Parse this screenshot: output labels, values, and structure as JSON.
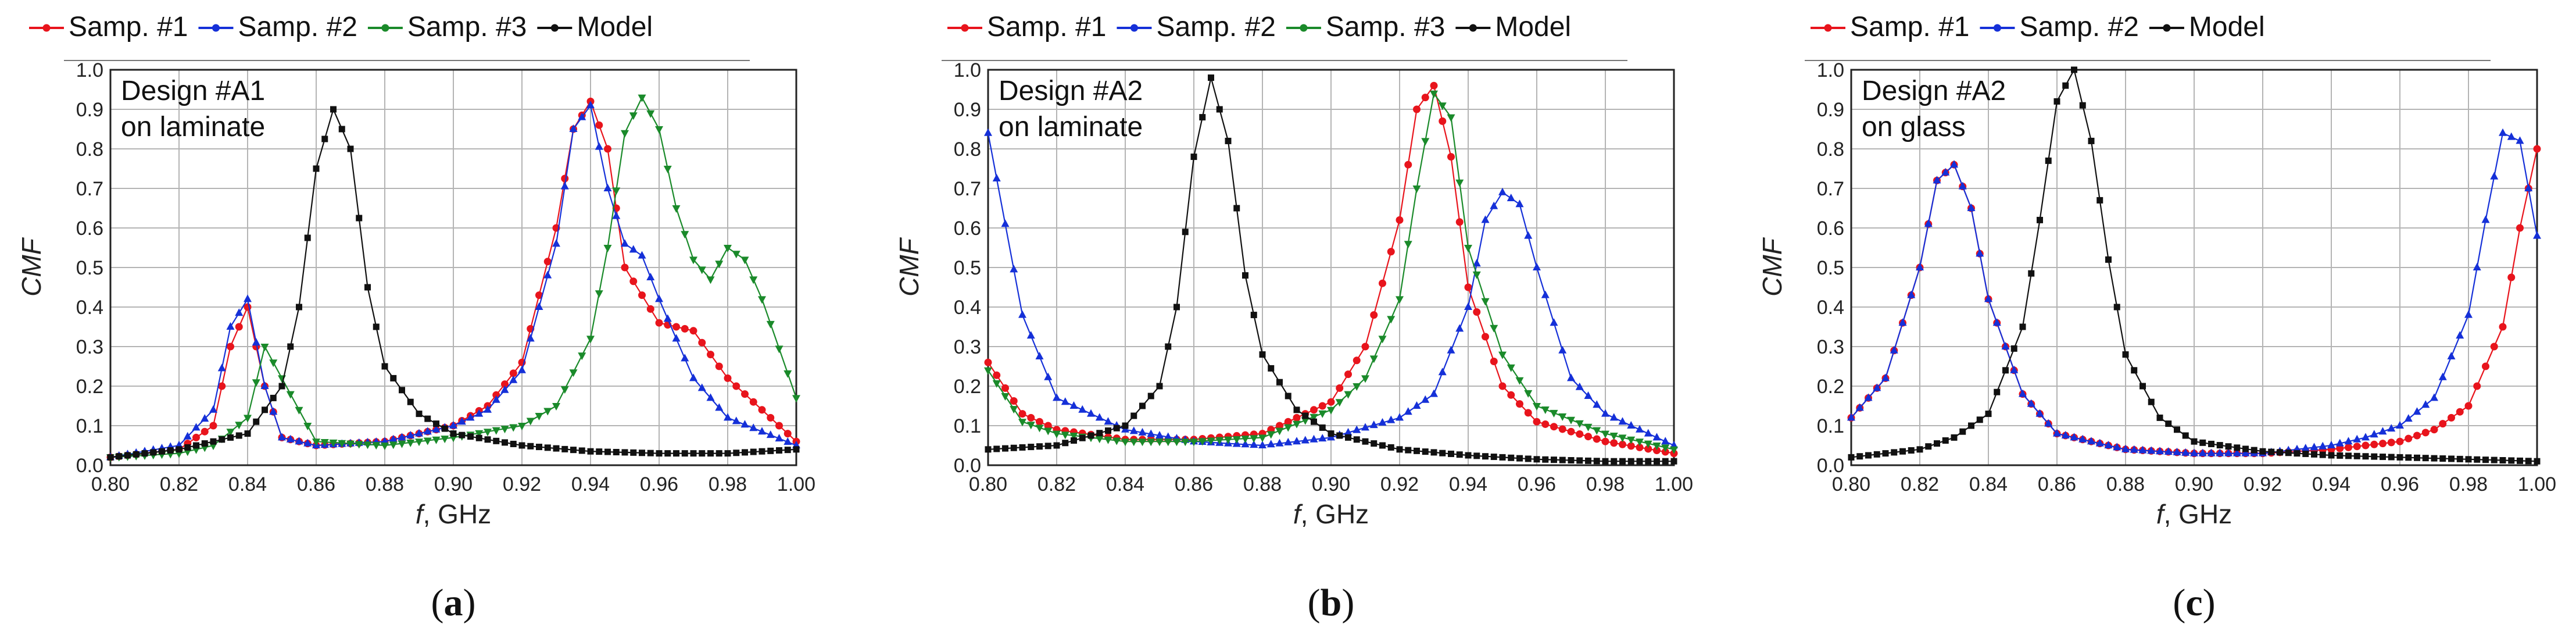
{
  "chart_data": [
    {
      "type": "line",
      "panel_label": "a",
      "annotation": [
        "Design #A1",
        "on laminate"
      ],
      "xlabel_italic": "f",
      "xlabel_rest": ", GHz",
      "ylabel": "CMF",
      "xlim": [
        0.8,
        1.0
      ],
      "ylim": [
        0.0,
        1.0
      ],
      "xticks": [
        "0.80",
        "0.82",
        "0.84",
        "0.86",
        "0.88",
        "0.90",
        "0.92",
        "0.94",
        "0.96",
        "0.98",
        "1.00"
      ],
      "yticks": [
        "0.0",
        "0.1",
        "0.2",
        "0.3",
        "0.4",
        "0.5",
        "0.6",
        "0.7",
        "0.8",
        "0.9",
        "1.0"
      ],
      "grid": true,
      "legend_position": "top",
      "series": [
        {
          "name": "Samp. #1",
          "color": "#e8141c",
          "marker": "circle",
          "x": [
            0.8,
            0.82,
            0.83,
            0.835,
            0.84,
            0.845,
            0.85,
            0.86,
            0.88,
            0.9,
            0.91,
            0.92,
            0.93,
            0.935,
            0.94,
            0.945,
            0.95,
            0.96,
            0.97,
            0.98,
            1.0
          ],
          "y": [
            0.02,
            0.04,
            0.1,
            0.3,
            0.4,
            0.2,
            0.07,
            0.05,
            0.06,
            0.1,
            0.15,
            0.26,
            0.6,
            0.85,
            0.92,
            0.8,
            0.5,
            0.36,
            0.34,
            0.22,
            0.06
          ]
        },
        {
          "name": "Samp. #2",
          "color": "#1530d8",
          "marker": "triangle",
          "x": [
            0.8,
            0.82,
            0.83,
            0.835,
            0.84,
            0.845,
            0.85,
            0.86,
            0.88,
            0.9,
            0.91,
            0.92,
            0.93,
            0.935,
            0.94,
            0.945,
            0.95,
            0.955,
            0.96,
            0.97,
            0.98,
            1.0
          ],
          "y": [
            0.02,
            0.05,
            0.14,
            0.35,
            0.42,
            0.2,
            0.07,
            0.05,
            0.06,
            0.1,
            0.14,
            0.24,
            0.56,
            0.85,
            0.91,
            0.7,
            0.56,
            0.53,
            0.42,
            0.22,
            0.12,
            0.05
          ]
        },
        {
          "name": "Samp. #3",
          "color": "#1a8a2a",
          "marker": "triangle-down",
          "x": [
            0.8,
            0.82,
            0.83,
            0.84,
            0.845,
            0.85,
            0.86,
            0.88,
            0.9,
            0.92,
            0.93,
            0.94,
            0.945,
            0.95,
            0.955,
            0.96,
            0.965,
            0.97,
            0.975,
            0.98,
            0.985,
            0.99,
            1.0
          ],
          "y": [
            0.02,
            0.03,
            0.05,
            0.12,
            0.3,
            0.22,
            0.06,
            0.05,
            0.07,
            0.1,
            0.15,
            0.32,
            0.55,
            0.84,
            0.93,
            0.85,
            0.65,
            0.52,
            0.47,
            0.55,
            0.52,
            0.42,
            0.17
          ]
        },
        {
          "name": "Model",
          "color": "#111111",
          "marker": "square",
          "x": [
            0.8,
            0.82,
            0.84,
            0.85,
            0.855,
            0.86,
            0.865,
            0.87,
            0.875,
            0.88,
            0.89,
            0.9,
            0.92,
            0.94,
            0.96,
            0.98,
            1.0
          ],
          "y": [
            0.02,
            0.04,
            0.08,
            0.2,
            0.4,
            0.75,
            0.9,
            0.8,
            0.45,
            0.25,
            0.13,
            0.08,
            0.05,
            0.035,
            0.03,
            0.03,
            0.04
          ]
        }
      ]
    },
    {
      "type": "line",
      "panel_label": "b",
      "annotation": [
        "Design #A2",
        "on laminate"
      ],
      "xlabel_italic": "f",
      "xlabel_rest": ", GHz",
      "ylabel": "CMF",
      "xlim": [
        0.8,
        1.0
      ],
      "ylim": [
        0.0,
        1.0
      ],
      "xticks": [
        "0.80",
        "0.82",
        "0.84",
        "0.86",
        "0.88",
        "0.90",
        "0.92",
        "0.94",
        "0.96",
        "0.98",
        "1.00"
      ],
      "yticks": [
        "0.0",
        "0.1",
        "0.2",
        "0.3",
        "0.4",
        "0.5",
        "0.6",
        "0.7",
        "0.8",
        "0.9",
        "1.0"
      ],
      "grid": true,
      "legend_position": "top",
      "series": [
        {
          "name": "Samp. #1",
          "color": "#e8141c",
          "marker": "circle",
          "x": [
            0.8,
            0.81,
            0.82,
            0.84,
            0.86,
            0.88,
            0.9,
            0.91,
            0.92,
            0.925,
            0.93,
            0.935,
            0.94,
            0.95,
            0.96,
            0.98,
            1.0
          ],
          "y": [
            0.26,
            0.13,
            0.09,
            0.065,
            0.065,
            0.08,
            0.16,
            0.3,
            0.62,
            0.9,
            0.96,
            0.78,
            0.45,
            0.2,
            0.11,
            0.06,
            0.03
          ]
        },
        {
          "name": "Samp. #2",
          "color": "#1530d8",
          "marker": "triangle",
          "x": [
            0.8,
            0.81,
            0.82,
            0.84,
            0.86,
            0.88,
            0.9,
            0.92,
            0.93,
            0.94,
            0.945,
            0.95,
            0.955,
            0.96,
            0.97,
            0.98,
            1.0
          ],
          "y": [
            0.84,
            0.38,
            0.17,
            0.09,
            0.06,
            0.05,
            0.07,
            0.12,
            0.18,
            0.4,
            0.62,
            0.69,
            0.66,
            0.5,
            0.22,
            0.13,
            0.05
          ]
        },
        {
          "name": "Samp. #3",
          "color": "#1a8a2a",
          "marker": "triangle-down",
          "x": [
            0.8,
            0.81,
            0.82,
            0.84,
            0.86,
            0.88,
            0.9,
            0.91,
            0.92,
            0.925,
            0.93,
            0.935,
            0.94,
            0.95,
            0.96,
            0.98,
            1.0
          ],
          "y": [
            0.24,
            0.11,
            0.08,
            0.06,
            0.06,
            0.07,
            0.14,
            0.22,
            0.42,
            0.7,
            0.94,
            0.88,
            0.55,
            0.28,
            0.15,
            0.08,
            0.04
          ]
        },
        {
          "name": "Model",
          "color": "#111111",
          "marker": "square",
          "x": [
            0.8,
            0.82,
            0.84,
            0.85,
            0.855,
            0.86,
            0.865,
            0.87,
            0.875,
            0.88,
            0.89,
            0.9,
            0.92,
            0.94,
            0.96,
            0.98,
            1.0
          ],
          "y": [
            0.04,
            0.05,
            0.1,
            0.2,
            0.4,
            0.78,
            0.98,
            0.82,
            0.48,
            0.28,
            0.14,
            0.08,
            0.04,
            0.025,
            0.015,
            0.01,
            0.01
          ]
        }
      ]
    },
    {
      "type": "line",
      "panel_label": "c",
      "annotation": [
        "Design #A2",
        "on glass"
      ],
      "xlabel_italic": "f",
      "xlabel_rest": ", GHz",
      "ylabel": "CMF",
      "xlim": [
        0.8,
        1.0
      ],
      "ylim": [
        0.0,
        1.0
      ],
      "xticks": [
        "0.80",
        "0.82",
        "0.84",
        "0.86",
        "0.88",
        "0.90",
        "0.92",
        "0.94",
        "0.96",
        "0.98",
        "1.00"
      ],
      "yticks": [
        "0.0",
        "0.1",
        "0.2",
        "0.3",
        "0.4",
        "0.5",
        "0.6",
        "0.7",
        "0.8",
        "0.9",
        "1.0"
      ],
      "grid": true,
      "legend_position": "top",
      "series": [
        {
          "name": "Samp. #1",
          "color": "#e8141c",
          "marker": "circle",
          "x": [
            0.8,
            0.81,
            0.82,
            0.825,
            0.83,
            0.835,
            0.84,
            0.85,
            0.86,
            0.88,
            0.9,
            0.92,
            0.94,
            0.96,
            0.97,
            0.98,
            0.99,
            0.995,
            1.0
          ],
          "y": [
            0.12,
            0.22,
            0.5,
            0.72,
            0.76,
            0.65,
            0.42,
            0.18,
            0.08,
            0.04,
            0.03,
            0.03,
            0.04,
            0.06,
            0.09,
            0.15,
            0.35,
            0.6,
            0.8
          ]
        },
        {
          "name": "Samp. #2",
          "color": "#1530d8",
          "marker": "triangle",
          "x": [
            0.8,
            0.81,
            0.82,
            0.825,
            0.83,
            0.835,
            0.84,
            0.85,
            0.86,
            0.88,
            0.9,
            0.92,
            0.94,
            0.95,
            0.96,
            0.97,
            0.98,
            0.985,
            0.99,
            0.995,
            1.0
          ],
          "y": [
            0.12,
            0.22,
            0.5,
            0.72,
            0.76,
            0.65,
            0.42,
            0.18,
            0.08,
            0.04,
            0.03,
            0.03,
            0.05,
            0.07,
            0.1,
            0.17,
            0.38,
            0.62,
            0.84,
            0.82,
            0.58
          ]
        },
        {
          "name": "Model",
          "color": "#111111",
          "marker": "square",
          "x": [
            0.8,
            0.82,
            0.83,
            0.84,
            0.85,
            0.855,
            0.86,
            0.865,
            0.87,
            0.875,
            0.88,
            0.89,
            0.9,
            0.92,
            0.94,
            0.96,
            0.98,
            1.0
          ],
          "y": [
            0.02,
            0.04,
            0.07,
            0.13,
            0.35,
            0.62,
            0.92,
            1.0,
            0.82,
            0.52,
            0.28,
            0.12,
            0.06,
            0.035,
            0.025,
            0.02,
            0.015,
            0.01
          ]
        }
      ]
    }
  ]
}
